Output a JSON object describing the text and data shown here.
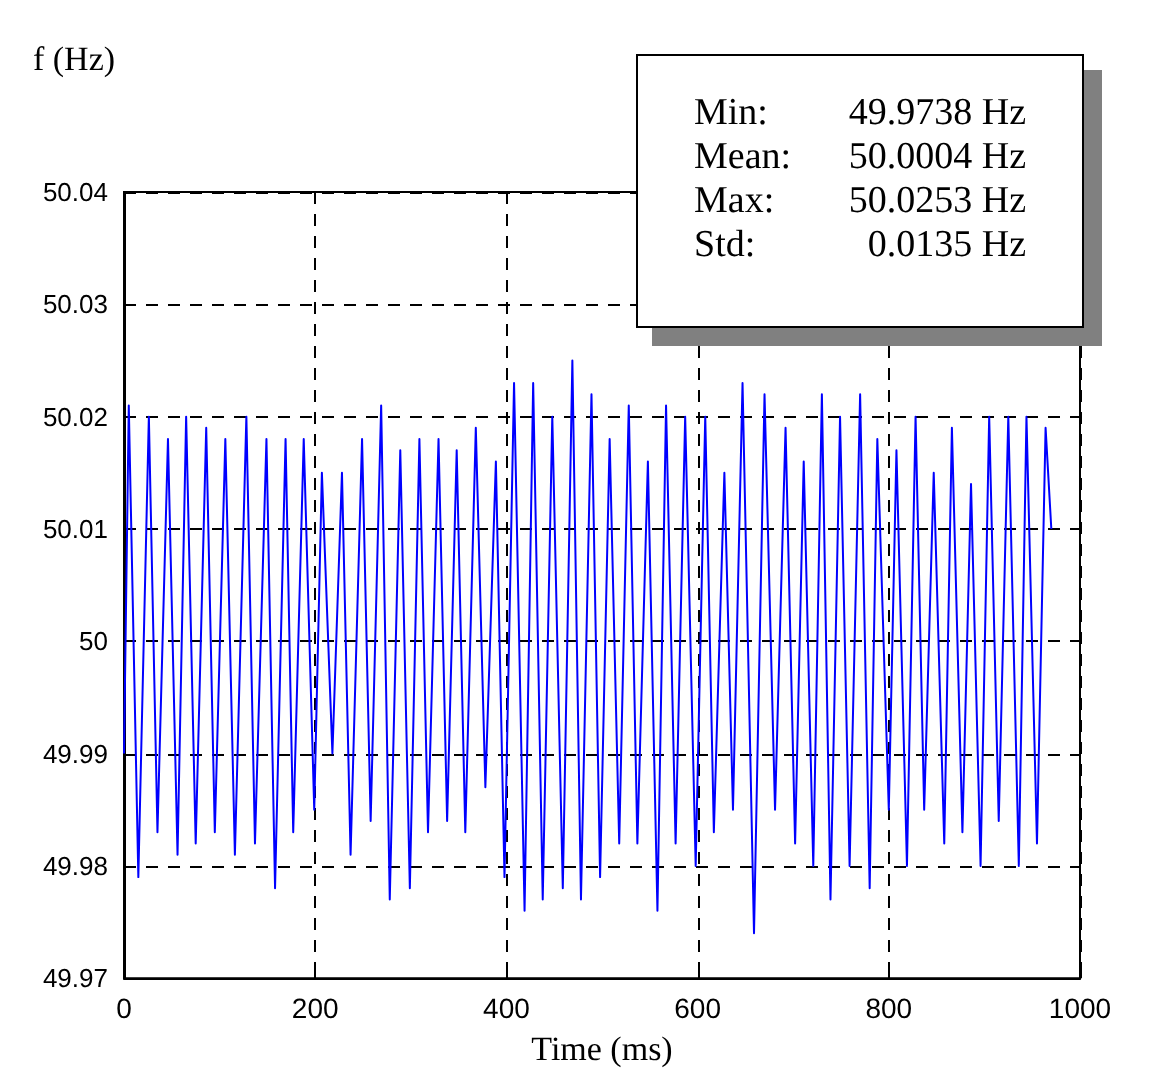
{
  "chart_data": {
    "type": "line",
    "xlabel": "Time (ms)",
    "ylabel": "f (Hz)",
    "annotations": [
      "Min:",
      "49.9738 Hz",
      "Mean:",
      "50.0004 Hz",
      "Max:",
      "50.0253 Hz",
      "Std:",
      "0.0135 Hz"
    ],
    "xlim": [
      0,
      1000
    ],
    "xticks": [
      0,
      200,
      400,
      600,
      800,
      1000
    ],
    "ylim": [
      49.97,
      50.04
    ],
    "yticks": [
      49.97,
      49.98,
      49.99,
      50,
      50.01,
      50.02,
      50.03,
      50.04
    ],
    "grid": true,
    "marker": "none",
    "line_style": "solid",
    "series": [
      {
        "color": "#0000ff",
        "x": [
          0,
          5,
          15,
          26,
          35,
          46,
          56,
          65,
          75,
          86,
          95,
          106,
          116,
          128,
          137,
          149,
          158,
          169,
          177,
          188,
          199,
          207,
          218,
          228,
          237,
          249,
          258,
          269,
          278,
          289,
          299,
          309,
          318,
          329,
          338,
          348,
          357,
          368,
          378,
          389,
          398,
          408,
          419,
          428,
          438,
          448,
          459,
          469,
          478,
          489,
          498,
          508,
          518,
          528,
          537,
          548,
          558,
          567,
          577,
          587,
          598,
          608,
          617,
          628,
          637,
          647,
          659,
          670,
          681,
          692,
          702,
          711,
          721,
          730,
          739,
          749,
          759,
          770,
          780,
          788,
          800,
          808,
          819,
          828,
          837,
          847,
          858,
          866,
          877,
          886,
          896,
          905,
          915,
          925,
          936,
          944,
          955,
          964,
          970
        ],
        "values": [
          49.99,
          50.021,
          49.979,
          50.02,
          49.983,
          50.018,
          49.981,
          50.02,
          49.982,
          50.019,
          49.983,
          50.018,
          49.981,
          50.02,
          49.982,
          50.018,
          49.978,
          50.018,
          49.983,
          50.018,
          49.985,
          50.015,
          49.99,
          50.015,
          49.981,
          50.018,
          49.984,
          50.021,
          49.977,
          50.017,
          49.978,
          50.018,
          49.983,
          50.018,
          49.984,
          50.017,
          49.983,
          50.019,
          49.987,
          50.016,
          49.979,
          50.023,
          49.976,
          50.023,
          49.977,
          50.02,
          49.978,
          50.025,
          49.977,
          50.022,
          49.979,
          50.018,
          49.982,
          50.021,
          49.982,
          50.016,
          49.976,
          50.021,
          49.982,
          50.02,
          49.98,
          50.02,
          49.983,
          50.015,
          49.985,
          50.023,
          49.974,
          50.022,
          49.985,
          50.019,
          49.982,
          50.016,
          49.98,
          50.022,
          49.977,
          50.02,
          49.98,
          50.022,
          49.978,
          50.018,
          49.985,
          50.017,
          49.98,
          50.02,
          49.985,
          50.015,
          49.982,
          50.019,
          49.983,
          50.014,
          49.98,
          50.02,
          49.984,
          50.02,
          49.98,
          50.02,
          49.982,
          50.019,
          50.01
        ]
      }
    ]
  }
}
